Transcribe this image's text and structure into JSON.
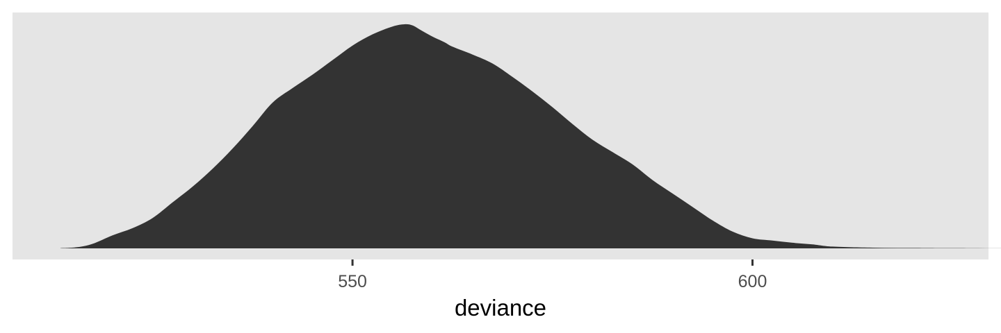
{
  "chart_data": {
    "type": "area",
    "title": "",
    "xlabel": "deviance",
    "ylabel": "",
    "xlim": [
      507.5,
      629.5
    ],
    "ylim": [
      0,
      1
    ],
    "grid": false,
    "legend": "none",
    "x_ticks": [
      550,
      600
    ],
    "x_tick_labels": [
      "550",
      "600"
    ],
    "show_y_axis": false,
    "colors": {
      "panel": "#e5e5e5",
      "fill": "#333333",
      "tick": "#333333",
      "tick_text": "#4d4d4d"
    },
    "series": [
      {
        "x": [
          513.5,
          515.5,
          517.5,
          520,
          522.5,
          525,
          527.5,
          530,
          532.5,
          535,
          537.5,
          540,
          542.5,
          545,
          547.5,
          550,
          552.5,
          555,
          556.5,
          557.5,
          558.5,
          560,
          561.5,
          562.5,
          565,
          567.5,
          570,
          572.5,
          575,
          577.5,
          580,
          582.5,
          585,
          587.5,
          590,
          592.5,
          595,
          597.5,
          600,
          602.5,
          605,
          607.5,
          610,
          615,
          620,
          625,
          634.5
        ],
        "y": [
          0.001,
          0.005,
          0.02,
          0.058,
          0.09,
          0.135,
          0.205,
          0.275,
          0.355,
          0.445,
          0.545,
          0.65,
          0.715,
          0.775,
          0.84,
          0.905,
          0.955,
          0.99,
          1.0,
          0.995,
          0.975,
          0.945,
          0.92,
          0.9,
          0.865,
          0.825,
          0.765,
          0.7,
          0.63,
          0.555,
          0.485,
          0.43,
          0.375,
          0.305,
          0.245,
          0.185,
          0.125,
          0.075,
          0.045,
          0.035,
          0.025,
          0.018,
          0.008,
          0.003,
          0.002,
          0.001,
          0.0
        ]
      }
    ]
  }
}
